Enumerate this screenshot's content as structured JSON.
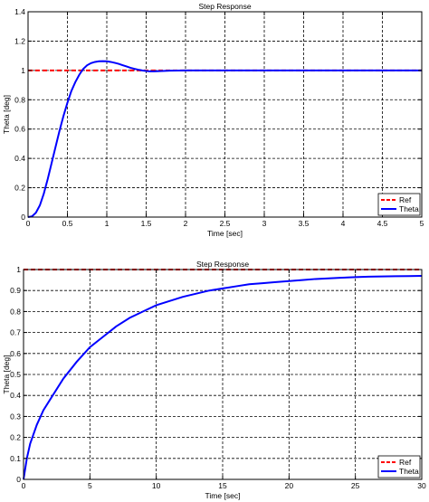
{
  "chart_data": [
    {
      "type": "line",
      "title": "Step Response",
      "xlabel": "Time [sec]",
      "ylabel": "Theta [deg]",
      "xlim": [
        0,
        5
      ],
      "ylim": [
        0,
        1.4
      ],
      "xticks": [
        0,
        0.5,
        1,
        1.5,
        2,
        2.5,
        3,
        3.5,
        4,
        4.5,
        5
      ],
      "yticks": [
        0,
        0.2,
        0.4,
        0.6,
        0.8,
        1,
        1.2,
        1.4
      ],
      "xtick_labels": [
        "0",
        "0.5",
        "1",
        "1.5",
        "2",
        "2.5",
        "3",
        "3.5",
        "4",
        "4.5",
        "5"
      ],
      "ytick_labels": [
        "0",
        "0.2",
        "0.4",
        "0.6",
        "0.8",
        "1",
        "1.2",
        "1.4"
      ],
      "grid": true,
      "legend_position": "bottom-right",
      "series": [
        {
          "name": "Ref",
          "color": "#ff0000",
          "style": "dashed",
          "x": [
            0,
            5
          ],
          "y": [
            1,
            1
          ]
        },
        {
          "name": "Theta",
          "color": "#0000ff",
          "style": "solid",
          "x": [
            0,
            0.05,
            0.1,
            0.15,
            0.2,
            0.25,
            0.3,
            0.35,
            0.4,
            0.45,
            0.5,
            0.55,
            0.6,
            0.65,
            0.7,
            0.75,
            0.8,
            0.85,
            0.9,
            0.95,
            1.0,
            1.05,
            1.1,
            1.15,
            1.2,
            1.25,
            1.3,
            1.35,
            1.4,
            1.45,
            1.5,
            1.55,
            1.6,
            1.7,
            1.8,
            2.0,
            2.5,
            3.0,
            4.0,
            5.0
          ],
          "y": [
            0,
            0.005,
            0.03,
            0.08,
            0.16,
            0.26,
            0.37,
            0.48,
            0.59,
            0.69,
            0.78,
            0.86,
            0.92,
            0.97,
            1.01,
            1.035,
            1.05,
            1.058,
            1.062,
            1.063,
            1.062,
            1.058,
            1.052,
            1.045,
            1.036,
            1.027,
            1.018,
            1.011,
            1.005,
            1.0,
            0.996,
            0.994,
            0.994,
            0.996,
            0.998,
            1.0,
            1.0,
            1.0,
            1.0,
            1.0
          ]
        }
      ]
    },
    {
      "type": "line",
      "title": "Step Response",
      "xlabel": "Time [sec]",
      "ylabel": "Theta [deg]",
      "xlim": [
        0,
        30
      ],
      "ylim": [
        0,
        1
      ],
      "xticks": [
        0,
        5,
        10,
        15,
        20,
        25,
        30
      ],
      "yticks": [
        0,
        0.1,
        0.2,
        0.3,
        0.4,
        0.5,
        0.6,
        0.7,
        0.8,
        0.9,
        1
      ],
      "xtick_labels": [
        "0",
        "5",
        "10",
        "15",
        "20",
        "25",
        "30"
      ],
      "ytick_labels": [
        "0",
        "0.1",
        "0.2",
        "0.3",
        "0.4",
        "0.5",
        "0.6",
        "0.7",
        "0.8",
        "0.9",
        "1"
      ],
      "grid": true,
      "legend_position": "bottom-right",
      "series": [
        {
          "name": "Ref",
          "color": "#ff0000",
          "style": "dashed",
          "x": [
            0,
            30
          ],
          "y": [
            1,
            1
          ]
        },
        {
          "name": "Theta",
          "color": "#0000ff",
          "style": "solid",
          "x": [
            0,
            0.25,
            0.5,
            1,
            1.5,
            2,
            3,
            4,
            5,
            6,
            7,
            8,
            9,
            10,
            11,
            12,
            13,
            14,
            15,
            16,
            17,
            18,
            19,
            20,
            21,
            22,
            23,
            24,
            25,
            26,
            27,
            28,
            29,
            30
          ],
          "y": [
            0,
            0.1,
            0.17,
            0.26,
            0.33,
            0.38,
            0.48,
            0.56,
            0.63,
            0.68,
            0.73,
            0.77,
            0.8,
            0.83,
            0.85,
            0.87,
            0.885,
            0.9,
            0.91,
            0.92,
            0.93,
            0.935,
            0.94,
            0.945,
            0.95,
            0.955,
            0.958,
            0.961,
            0.964,
            0.966,
            0.967,
            0.968,
            0.969,
            0.97
          ]
        }
      ]
    }
  ]
}
